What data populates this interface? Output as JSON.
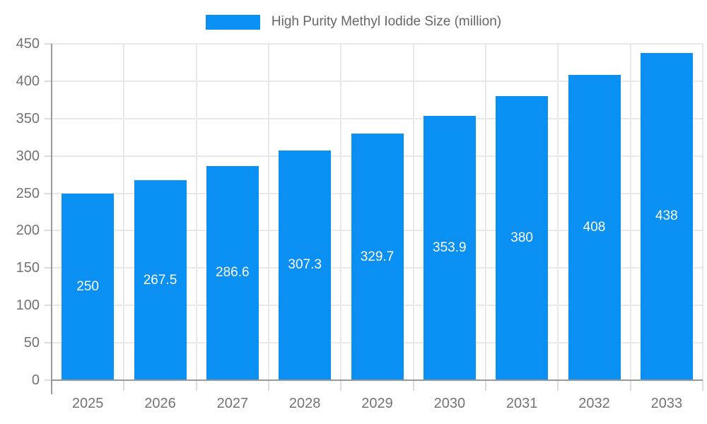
{
  "legend": {
    "label": "High Purity Methyl Iodide Size (million)"
  },
  "chart_data": {
    "type": "bar",
    "title": "High Purity Methyl Iodide Size (million)",
    "series_name": "High Purity Methyl Iodide Size (million)",
    "categories": [
      "2025",
      "2026",
      "2027",
      "2028",
      "2029",
      "2030",
      "2031",
      "2032",
      "2033"
    ],
    "values": [
      250,
      267.5,
      286.6,
      307.3,
      329.7,
      353.9,
      380,
      408,
      438
    ],
    "value_labels": [
      "250",
      "267.5",
      "286.6",
      "307.3",
      "329.7",
      "353.9",
      "380",
      "408",
      "438"
    ],
    "xlabel": "",
    "ylabel": "",
    "ylim": [
      0,
      450
    ],
    "ytick_step": 50,
    "yticks": [
      0,
      50,
      100,
      150,
      200,
      250,
      300,
      350,
      400,
      450
    ],
    "grid": true,
    "legend_position": "top",
    "bar_color": "#0a8ff2",
    "value_label_color": "#ffffff",
    "axis_text_color": "#737373",
    "gridline_color": "#e8e8e8",
    "axis_line_color": "#999999"
  }
}
